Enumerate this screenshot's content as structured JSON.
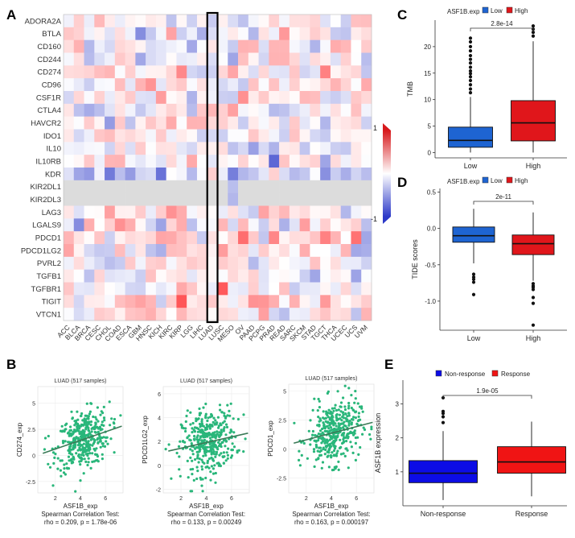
{
  "panels": {
    "A": "A",
    "B": "B",
    "C": "C",
    "D": "D",
    "E": "E"
  },
  "heatmap": {
    "genes": [
      "ADORA2A",
      "BTLA",
      "CD160",
      "CD244",
      "CD274",
      "CD96",
      "CSF1R",
      "CTLA4",
      "HAVCR2",
      "IDO1",
      "IL10",
      "IL10RB",
      "KDR",
      "KIR2DL1",
      "KIR2DL3",
      "LAG3",
      "LGALS9",
      "PDCD1",
      "PDCD1LG2",
      "PVRL2",
      "TGFB1",
      "TGFBR1",
      "TIGIT",
      "VTCN1"
    ],
    "cancers": [
      "ACC",
      "BLCA",
      "BRCA",
      "CESC",
      "CHOL",
      "COAD",
      "ESCA",
      "GBM",
      "HNSC",
      "KICH",
      "KIRC",
      "KIRP",
      "LGG",
      "LIHC",
      "LUAD",
      "LUSC",
      "MESO",
      "OV",
      "PAAD",
      "PCPG",
      "PRAD",
      "READ",
      "SARC",
      "SKCM",
      "STAD",
      "TGCT",
      "THCA",
      "UCEC",
      "UCS",
      "UVM"
    ],
    "highlight": "LUAD",
    "legend": {
      "max_label": "1",
      "min_label": "-1",
      "high_color": "#d7191c",
      "low_color": "#2c39c8"
    }
  },
  "chart_data": [
    {
      "panel": "C",
      "type": "box",
      "title": "",
      "legend_title": "ASF1B.exp",
      "groups": [
        "Low",
        "High"
      ],
      "colors": [
        "#1e64d2",
        "#e0161b"
      ],
      "ylabel": "TMB",
      "xlabel": "",
      "ylim": [
        -1,
        25
      ],
      "yticks": [
        0,
        5,
        10,
        15,
        20
      ],
      "stats": [
        {
          "name": "Low",
          "q1": 1.0,
          "median": 2.3,
          "q3": 4.8,
          "whisker_low": 0.0,
          "whisker_high": 10.5,
          "outliers": [
            11.3,
            12.0,
            12.8,
            13.6,
            14.3,
            14.9,
            15.4,
            16.1,
            16.9,
            17.6,
            18.3,
            19.2,
            20.0,
            20.9,
            21.6
          ]
        },
        {
          "name": "High",
          "q1": 2.2,
          "median": 5.6,
          "q3": 9.8,
          "whisker_low": 0.0,
          "whisker_high": 21.0,
          "outliers": [
            22.0,
            22.7,
            23.3,
            23.9
          ]
        }
      ],
      "pvalue": "2.8e-14"
    },
    {
      "panel": "D",
      "type": "box",
      "title": "",
      "legend_title": "ASF1B.exp",
      "groups": [
        "Low",
        "High"
      ],
      "colors": [
        "#1e64d2",
        "#e0161b"
      ],
      "ylabel": "TIDE scores",
      "xlabel": "",
      "ylim": [
        -1.4,
        0.55
      ],
      "yticks": [
        -1.0,
        -0.5,
        0.0,
        0.5
      ],
      "stats": [
        {
          "name": "Low",
          "q1": -0.19,
          "median": -0.1,
          "q3": 0.02,
          "whisker_low": -0.48,
          "whisker_high": 0.27,
          "outliers": [
            -0.63,
            -0.67,
            -0.7,
            -0.74,
            -0.91
          ]
        },
        {
          "name": "High",
          "q1": -0.36,
          "median": -0.21,
          "q3": -0.09,
          "whisker_low": -0.72,
          "whisker_high": 0.22,
          "outliers": [
            -0.76,
            -0.79,
            -0.81,
            -0.84,
            -0.95,
            -1.03,
            -1.33
          ]
        }
      ],
      "pvalue": "2e-11"
    },
    {
      "panel": "E",
      "type": "box",
      "title": "",
      "legend_title": "",
      "groups": [
        "Non-response",
        "Response"
      ],
      "colors": [
        "#0c0ce6",
        "#f01414"
      ],
      "ylabel": "ASF1B expression",
      "xlabel": "",
      "ylim": [
        0,
        3.7
      ],
      "yticks": [
        1,
        2,
        3
      ],
      "stats": [
        {
          "name": "Non-response",
          "q1": 0.68,
          "median": 0.96,
          "q3": 1.33,
          "whisker_low": 0.17,
          "whisker_high": 2.2,
          "outliers": [
            2.45,
            2.62,
            2.72,
            2.78,
            3.18
          ]
        },
        {
          "name": "Response",
          "q1": 0.96,
          "median": 1.29,
          "q3": 1.74,
          "whisker_low": 0.28,
          "whisker_high": 2.48,
          "outliers": []
        }
      ],
      "pvalue": "1.9e-05"
    },
    {
      "panel": "B1",
      "type": "scatter",
      "title": "LUAD (517 samples)",
      "xlabel": "ASF1B_exp",
      "ylabel": "CD274_exp",
      "xlim": [
        0.6,
        7.4
      ],
      "ylim": [
        -3.6,
        6.6
      ],
      "xticks": [
        2,
        4,
        6
      ],
      "yticks": [
        -2.5,
        0,
        2.5,
        5
      ],
      "test_label": "Spearman Correlation Test:",
      "stat": "rho = 0.209, p = 1.78e-06",
      "rho": 0.209,
      "fit": {
        "x": [
          1.0,
          7.3
        ],
        "y": [
          0.2,
          2.8
        ]
      }
    },
    {
      "panel": "B2",
      "type": "scatter",
      "title": "LUAD (517 samples)",
      "xlabel": "ASF1B_exp",
      "ylabel": "PDCD1LG2_exp",
      "xlim": [
        0.6,
        7.4
      ],
      "ylim": [
        -2.3,
        6.6
      ],
      "xticks": [
        2,
        4,
        6
      ],
      "yticks": [
        -2,
        0,
        2,
        4,
        6
      ],
      "test_label": "Spearman Correlation Test:",
      "stat": "rho = 0.133, p = 0.00249",
      "rho": 0.133,
      "fit": {
        "x": [
          1.0,
          7.3
        ],
        "y": [
          1.2,
          2.7
        ]
      }
    },
    {
      "panel": "B3",
      "type": "scatter",
      "title": "LUAD (517 samples)",
      "xlabel": "ASF1B_exp",
      "ylabel": "PDCD1_exp",
      "xlim": [
        0.6,
        7.4
      ],
      "ylim": [
        -3.8,
        5.6
      ],
      "xticks": [
        2,
        4,
        6
      ],
      "yticks": [
        -2.5,
        0,
        2.5,
        5
      ],
      "test_label": "Spearman Correlation Test:",
      "stat": "rho = 0.163, p = 0.000197",
      "rho": 0.163,
      "fit": {
        "x": [
          1.0,
          7.3
        ],
        "y": [
          0.5,
          2.3
        ]
      }
    }
  ],
  "colors": {
    "scatter": "#29b67a",
    "fit": "#3b7a57",
    "axis": "#333333",
    "grid": "#e4e4e4"
  }
}
